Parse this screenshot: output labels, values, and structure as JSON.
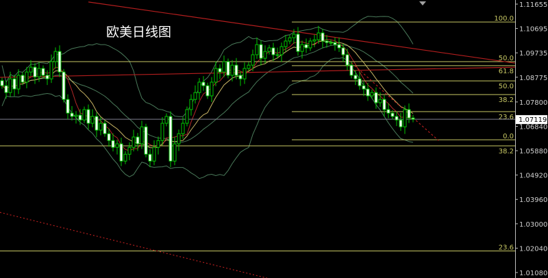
{
  "chart_data": {
    "type": "candlestick",
    "title": "欧美日线图",
    "ylim": [
      1.0108,
      1.11655
    ],
    "y_ticks": [
      "1.11655",
      "1.10695",
      "1.09735",
      "1.08775",
      "1.07800",
      "1.06840",
      "1.05880",
      "1.04920",
      "1.03960",
      "1.03000",
      "1.02040",
      "1.01080"
    ],
    "current_price": "1.07119",
    "colors": {
      "background": "#000000",
      "bull_outline": "#00c800",
      "bear_body": "#ffffff",
      "fib": "#c8c864",
      "trend": "#b41e1e",
      "band": "#4a7a5a",
      "ma_fast": "#b42828",
      "ma_slow": "#c8b464",
      "price_line": "#808090"
    },
    "close": [
      1.0844,
      1.0817,
      1.0871,
      1.0831,
      1.0885,
      1.0858,
      1.0898,
      1.0917,
      1.0879,
      1.0912,
      1.0885,
      1.0871,
      1.0939,
      1.0979,
      1.0898,
      1.079,
      1.0736,
      1.0723,
      1.0728,
      1.0709,
      1.075,
      1.0696,
      1.0723,
      1.0669,
      1.0696,
      1.0655,
      1.0628,
      1.0601,
      1.0615,
      1.0547,
      1.0574,
      1.0601,
      1.0642,
      1.0615,
      1.0682,
      1.0574,
      1.0547,
      1.0601,
      1.0628,
      1.0696,
      1.0723,
      1.0547,
      1.0615,
      1.0655,
      1.0696,
      1.075,
      1.079,
      1.0817,
      1.0858,
      1.0844,
      1.0804,
      1.0858,
      1.0912,
      1.0898,
      1.0939,
      1.0885,
      1.0925,
      1.0885,
      1.0871,
      1.0912,
      1.0925,
      1.0966,
      1.1006,
      1.0952,
      1.0979,
      1.0993,
      1.0966,
      1.0966,
      1.0998,
      1.102,
      1.1033,
      1.1047,
      1.0979,
      1.1006,
      1.0993,
      1.102,
      1.1025,
      1.1052,
      1.102,
      1.1014,
      1.1014,
      1.1006,
      1.0993,
      1.0966,
      1.0925,
      1.0885,
      1.0871,
      1.0844,
      1.0831,
      1.0804,
      1.0817,
      1.0777,
      1.079,
      1.075,
      1.0736,
      1.0723,
      1.0709,
      1.0682,
      1.075,
      1.0717,
      1.07119
    ],
    "fib_levels": [
      {
        "label": "100.0",
        "price": 1.1095,
        "from_bar": 71
      },
      {
        "label": "50.0",
        "price": 1.0939,
        "from_bar": 0
      },
      {
        "label": "61.8",
        "price": 1.0923,
        "from_bar": 71
      },
      {
        "label": "50.0",
        "price": 1.0863,
        "from_bar": 71
      },
      {
        "label": "38.2",
        "price": 1.0809,
        "from_bar": 71
      },
      {
        "label": "23.6",
        "price": 1.0742,
        "from_bar": 71
      },
      {
        "label": "0.0",
        "price": 1.0631,
        "from_bar": 71
      },
      {
        "label": "38.2",
        "price": 1.0607,
        "from_bar": 0
      },
      {
        "label": "23.6",
        "price": 1.0193,
        "from_bar": 0
      }
    ],
    "trend_lines": [
      {
        "style": "solid",
        "points": [
          [
            21,
            1.1174
          ],
          [
            124.8,
            1.0933
          ]
        ]
      },
      {
        "style": "solid",
        "points": [
          [
            -0.5,
            1.0877
          ],
          [
            124.8,
            1.0917
          ]
        ]
      },
      {
        "style": "dotted",
        "points": [
          [
            -0.5,
            1.0345
          ],
          [
            64.5,
            1.0086
          ]
        ]
      },
      {
        "style": "dashed",
        "points": [
          [
            82.8,
            1.0966
          ],
          [
            106.2,
            1.0628
          ]
        ]
      }
    ]
  }
}
